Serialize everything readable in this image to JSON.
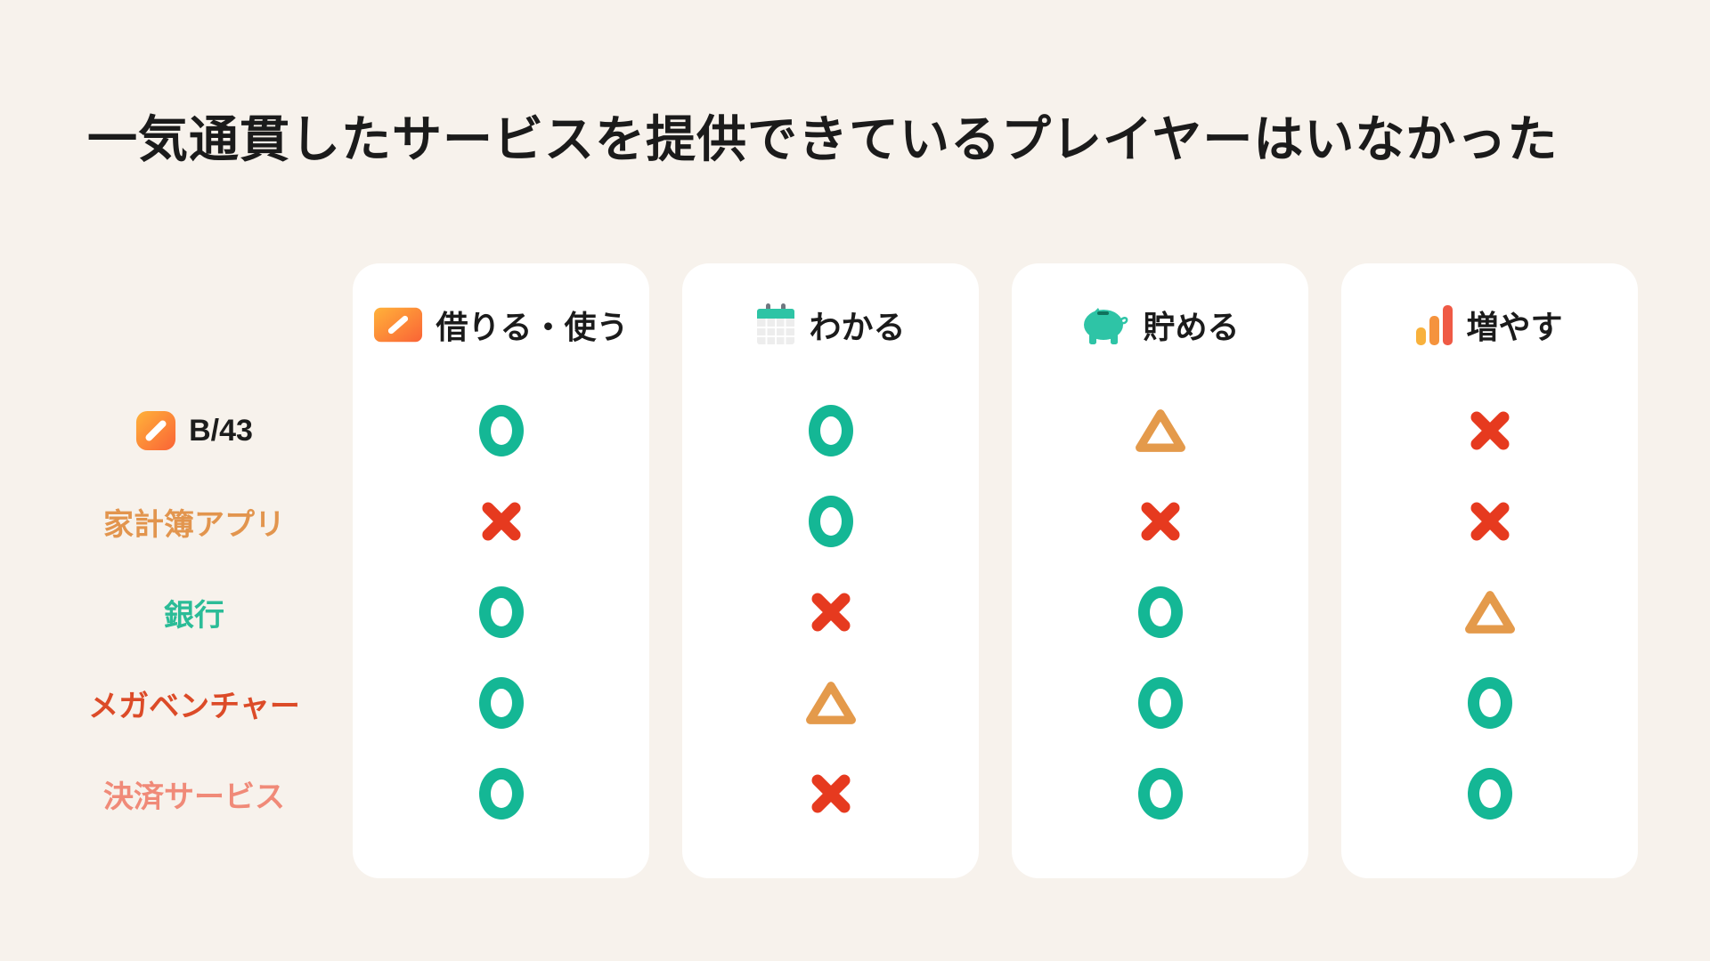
{
  "page": {
    "background": "#F7F2EC",
    "title": "一気通貫したサービスを提供できているプレイヤーはいなかった"
  },
  "columns": [
    {
      "label": "借りる・使う",
      "icon": "b43-card-icon"
    },
    {
      "label": "わかる",
      "icon": "calendar-icon"
    },
    {
      "label": "貯める",
      "icon": "piggy-bank-icon"
    },
    {
      "label": "増やす",
      "icon": "bar-chart-icon"
    }
  ],
  "rows": [
    {
      "label": "B/43",
      "color": "#1C1C1C",
      "icon": "b43-app-icon",
      "marks": [
        "circle",
        "circle",
        "triangle",
        "cross"
      ]
    },
    {
      "label": "家計簿アプリ",
      "color": "#E2954E",
      "marks": [
        "cross",
        "circle",
        "cross",
        "cross"
      ]
    },
    {
      "label": "銀行",
      "color": "#2BBC97",
      "marks": [
        "circle",
        "cross",
        "circle",
        "triangle"
      ]
    },
    {
      "label": "メガベンチャー",
      "color": "#DC4B28",
      "marks": [
        "circle",
        "triangle",
        "circle",
        "circle"
      ]
    },
    {
      "label": "決済サービス",
      "color": "#F08A78",
      "marks": [
        "circle",
        "cross",
        "circle",
        "circle"
      ]
    }
  ],
  "marks": {
    "circle": {
      "symbol": "○",
      "color": "#14B795"
    },
    "cross": {
      "symbol": "×",
      "color": "#E63A1F"
    },
    "triangle": {
      "symbol": "△",
      "color": "#E49A4B"
    }
  },
  "icon_colors": {
    "card_gradient_start": "#FFB23A",
    "card_gradient_end": "#FA6336",
    "calendar_band": "#2EC4A5",
    "calendar_body": "#EDEDED",
    "calendar_rings": "#707780",
    "piggy": "#2EC4A6",
    "bar1": "#F8B13C",
    "bar2": "#F5933D",
    "bar3": "#EF5A45"
  }
}
